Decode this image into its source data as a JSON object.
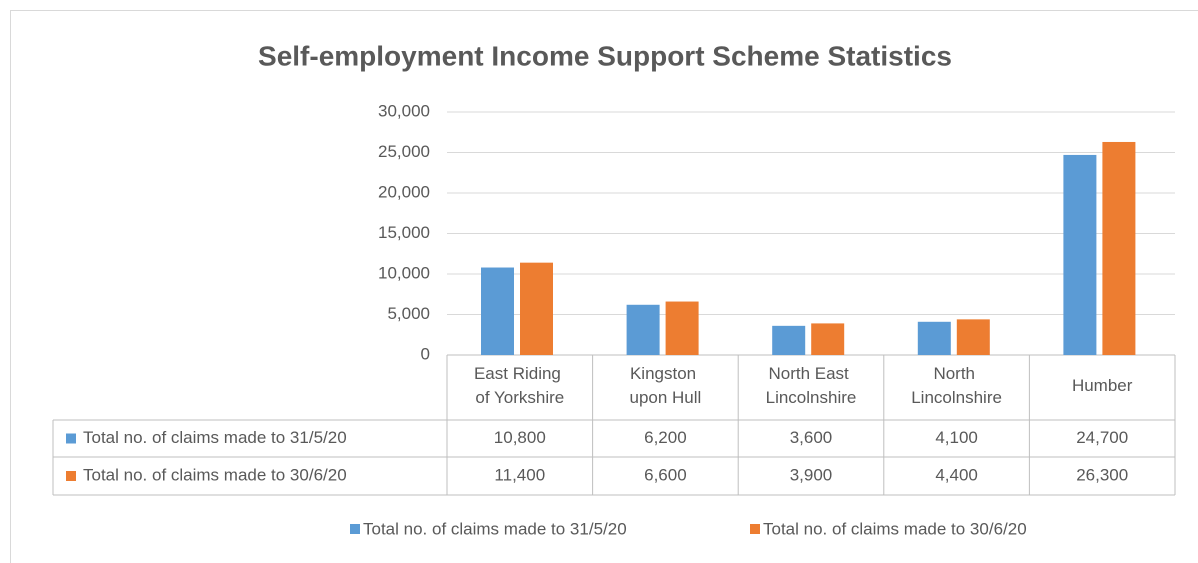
{
  "chart_data": {
    "type": "bar",
    "title": "Self-employment Income Support Scheme Statistics",
    "categories": [
      "East Riding of Yorkshire",
      "Kingston upon Hull",
      "North East Lincolnshire",
      "North Lincolnshire",
      "Humber"
    ],
    "series": [
      {
        "name": "Total no. of claims made to 31/5/20",
        "color": "#5b9bd5",
        "values": [
          10800,
          6200,
          3600,
          4100,
          24700
        ],
        "value_labels": [
          "10,800",
          "6,200",
          "3,600",
          "4,100",
          "24,700"
        ]
      },
      {
        "name": "Total no. of claims made to 30/6/20",
        "color": "#ed7d31",
        "values": [
          11400,
          6600,
          3900,
          4400,
          26300
        ],
        "value_labels": [
          "11,400",
          "6,600",
          "3,900",
          "4,400",
          "26,300"
        ]
      }
    ],
    "ylim": [
      0,
      30000
    ],
    "yticks": [
      0,
      {
        "value": 5000,
        "label": "5,000"
      },
      {
        "value": 10000,
        "label": "10,000"
      },
      {
        "value": 15000,
        "label": "15,000"
      },
      {
        "value": 20000,
        "label": "20,000"
      },
      {
        "value": 25000,
        "label": "25,000"
      },
      {
        "value": 30000,
        "label": "30,000"
      }
    ],
    "grid": true,
    "legend": "bottom"
  }
}
